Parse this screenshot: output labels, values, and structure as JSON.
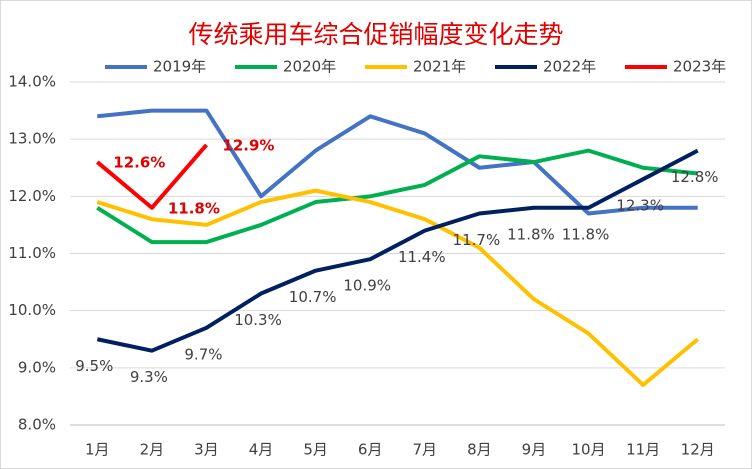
{
  "chart_data": {
    "type": "line",
    "title": "传统乘用车综合促销幅度变化走势",
    "categories": [
      "1月",
      "2月",
      "3月",
      "4月",
      "5月",
      "6月",
      "7月",
      "8月",
      "9月",
      "10月",
      "11月",
      "12月"
    ],
    "series": [
      {
        "name": "2019年",
        "color": "#4472c4",
        "values": [
          13.4,
          13.5,
          13.5,
          12.0,
          12.8,
          13.4,
          13.1,
          12.5,
          12.6,
          11.7,
          11.8,
          11.8
        ]
      },
      {
        "name": "2020年",
        "color": "#00b050",
        "values": [
          11.8,
          11.2,
          11.2,
          11.5,
          11.9,
          12.0,
          12.2,
          12.7,
          12.6,
          12.8,
          12.5,
          12.4
        ]
      },
      {
        "name": "2021年",
        "color": "#ffc000",
        "values": [
          11.9,
          11.6,
          11.5,
          11.9,
          12.1,
          11.9,
          11.6,
          11.1,
          10.2,
          9.6,
          8.7,
          9.5
        ]
      },
      {
        "name": "2022年",
        "color": "#002060",
        "values": [
          9.5,
          9.3,
          9.7,
          10.3,
          10.7,
          10.9,
          11.4,
          11.7,
          11.8,
          11.8,
          12.3,
          12.8
        ],
        "value_labels": [
          "9.5%",
          "9.3%",
          "9.7%",
          "10.3%",
          "10.7%",
          "10.9%",
          "11.4%",
          "11.7%",
          "11.8%",
          "11.8%",
          "12.3%",
          "12.8%"
        ]
      },
      {
        "name": "2023年",
        "color": "#ff0000",
        "values": [
          12.6,
          11.8,
          12.9,
          null,
          null,
          null,
          null,
          null,
          null,
          null,
          null,
          null
        ],
        "value_labels": [
          "12.6%",
          "11.8%",
          "12.9%",
          null,
          null,
          null,
          null,
          null,
          null,
          null,
          null,
          null
        ]
      }
    ],
    "ylim": [
      8,
      14
    ],
    "yticks": [
      {
        "value": 8,
        "label": "8.0%"
      },
      {
        "value": 9,
        "label": "9.0%"
      },
      {
        "value": 10,
        "label": "10.0%"
      },
      {
        "value": 11,
        "label": "11.0%"
      },
      {
        "value": 12,
        "label": "12.0%"
      },
      {
        "value": 13,
        "label": "13.0%"
      },
      {
        "value": 14,
        "label": "14.0%"
      }
    ],
    "grid": true,
    "legend": "top"
  }
}
